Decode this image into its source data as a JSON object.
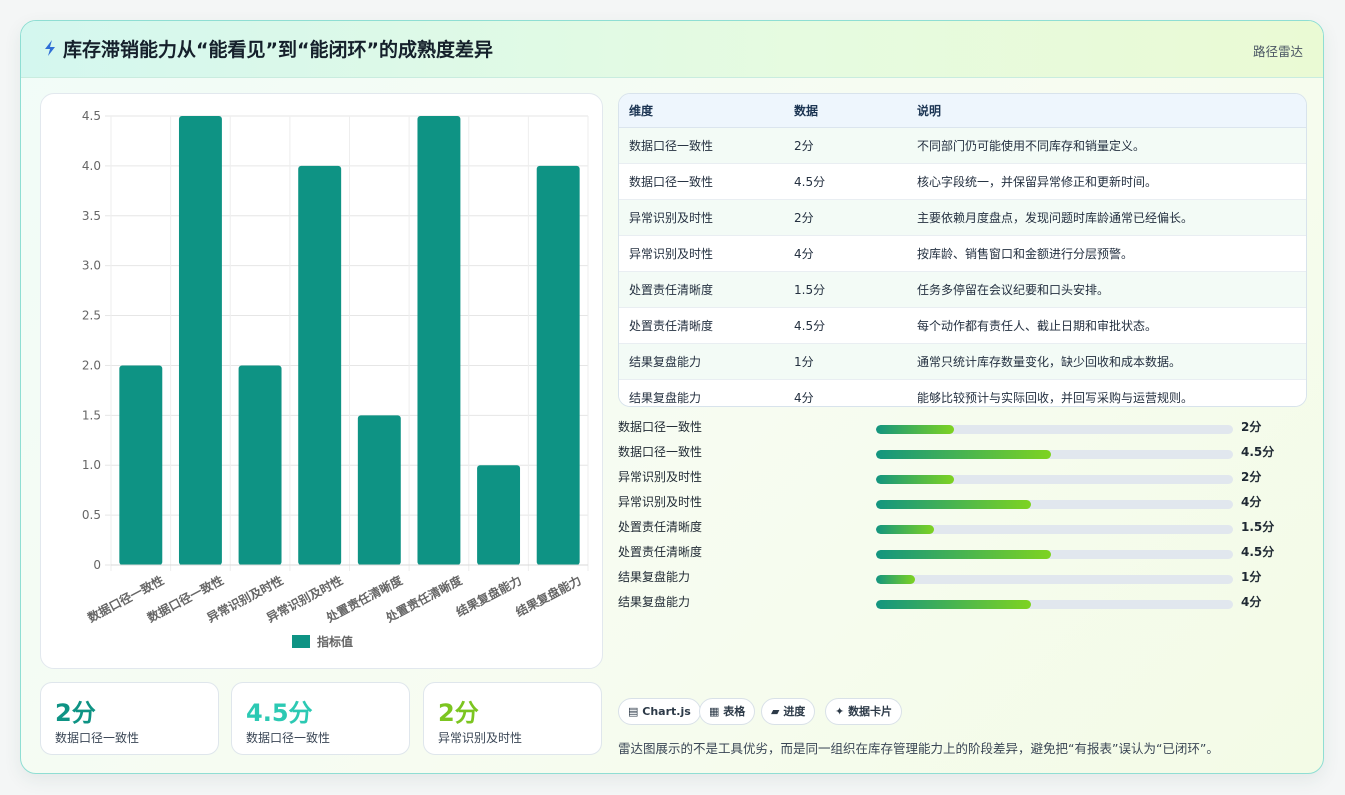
{
  "header": {
    "title": "库存滞销能力从“能看见”到“能闭环”的成熟度差异",
    "tag": "路径雷达"
  },
  "chart_data": {
    "type": "bar",
    "categories": [
      "数据口径一致性",
      "数据口径一致性",
      "异常识别及时性",
      "异常识别及时性",
      "处置责任清晰度",
      "处置责任清晰度",
      "结果复盘能力",
      "结果复盘能力"
    ],
    "series": [
      {
        "name": "指标值",
        "values": [
          2,
          4.5,
          2,
          4,
          1.5,
          4.5,
          1,
          4
        ]
      }
    ],
    "ylim": [
      0,
      4.5
    ],
    "yticks": [
      "0",
      "0.5",
      "1.0",
      "1.5",
      "2.0",
      "2.5",
      "3.0",
      "3.5",
      "4.0",
      "4.5"
    ],
    "bar_color": "#0e9384",
    "grid": true,
    "legend": "bottom"
  },
  "table": {
    "headers": [
      "维度",
      "数据",
      "说明"
    ],
    "rows": [
      [
        "数据口径一致性",
        "2分",
        "不同部门仍可能使用不同库存和销量定义。"
      ],
      [
        "数据口径一致性",
        "4.5分",
        "核心字段统一，并保留异常修正和更新时间。"
      ],
      [
        "异常识别及时性",
        "2分",
        "主要依赖月度盘点，发现问题时库龄通常已经偏长。"
      ],
      [
        "异常识别及时性",
        "4分",
        "按库龄、销售窗口和金额进行分层预警。"
      ],
      [
        "处置责任清晰度",
        "1.5分",
        "任务多停留在会议纪要和口头安排。"
      ],
      [
        "处置责任清晰度",
        "4.5分",
        "每个动作都有责任人、截止日期和审批状态。"
      ],
      [
        "结果复盘能力",
        "1分",
        "通常只统计库存数量变化，缺少回收和成本数据。"
      ],
      [
        "结果复盘能力",
        "4分",
        "能够比较预计与实际回收，并回写采购与运营规则。"
      ]
    ]
  },
  "progress": {
    "max": 4.5,
    "items": [
      {
        "label": "数据口径一致性",
        "value": 2,
        "text": "2分"
      },
      {
        "label": "数据口径一致性",
        "value": 4.5,
        "text": "4.5分"
      },
      {
        "label": "异常识别及时性",
        "value": 2,
        "text": "2分"
      },
      {
        "label": "异常识别及时性",
        "value": 4,
        "text": "4分"
      },
      {
        "label": "处置责任清晰度",
        "value": 1.5,
        "text": "1.5分"
      },
      {
        "label": "处置责任清晰度",
        "value": 4.5,
        "text": "4.5分"
      },
      {
        "label": "结果复盘能力",
        "value": 1,
        "text": "1分"
      },
      {
        "label": "结果复盘能力",
        "value": 4,
        "text": "4分"
      }
    ]
  },
  "stats": [
    {
      "value": "2分",
      "label": "数据口径一致性",
      "color": "#0e9384"
    },
    {
      "value": "4.5分",
      "label": "数据口径一致性",
      "color": "#2cc9b3"
    },
    {
      "value": "2分",
      "label": "异常识别及时性",
      "color": "#7cc520"
    }
  ],
  "chips": [
    {
      "icon": "chart-icon",
      "glyph": "▤",
      "label": "Chart.js"
    },
    {
      "icon": "table-icon",
      "glyph": "▦",
      "label": "表格"
    },
    {
      "icon": "progress-icon",
      "glyph": "▰",
      "label": "进度"
    },
    {
      "icon": "sparkle-icon",
      "glyph": "✦",
      "label": "数据卡片"
    }
  ],
  "footnote": "雷达图展示的不是工具优劣，而是同一组织在库存管理能力上的阶段差异，避免把“有报表”误认为“已闭环”。"
}
